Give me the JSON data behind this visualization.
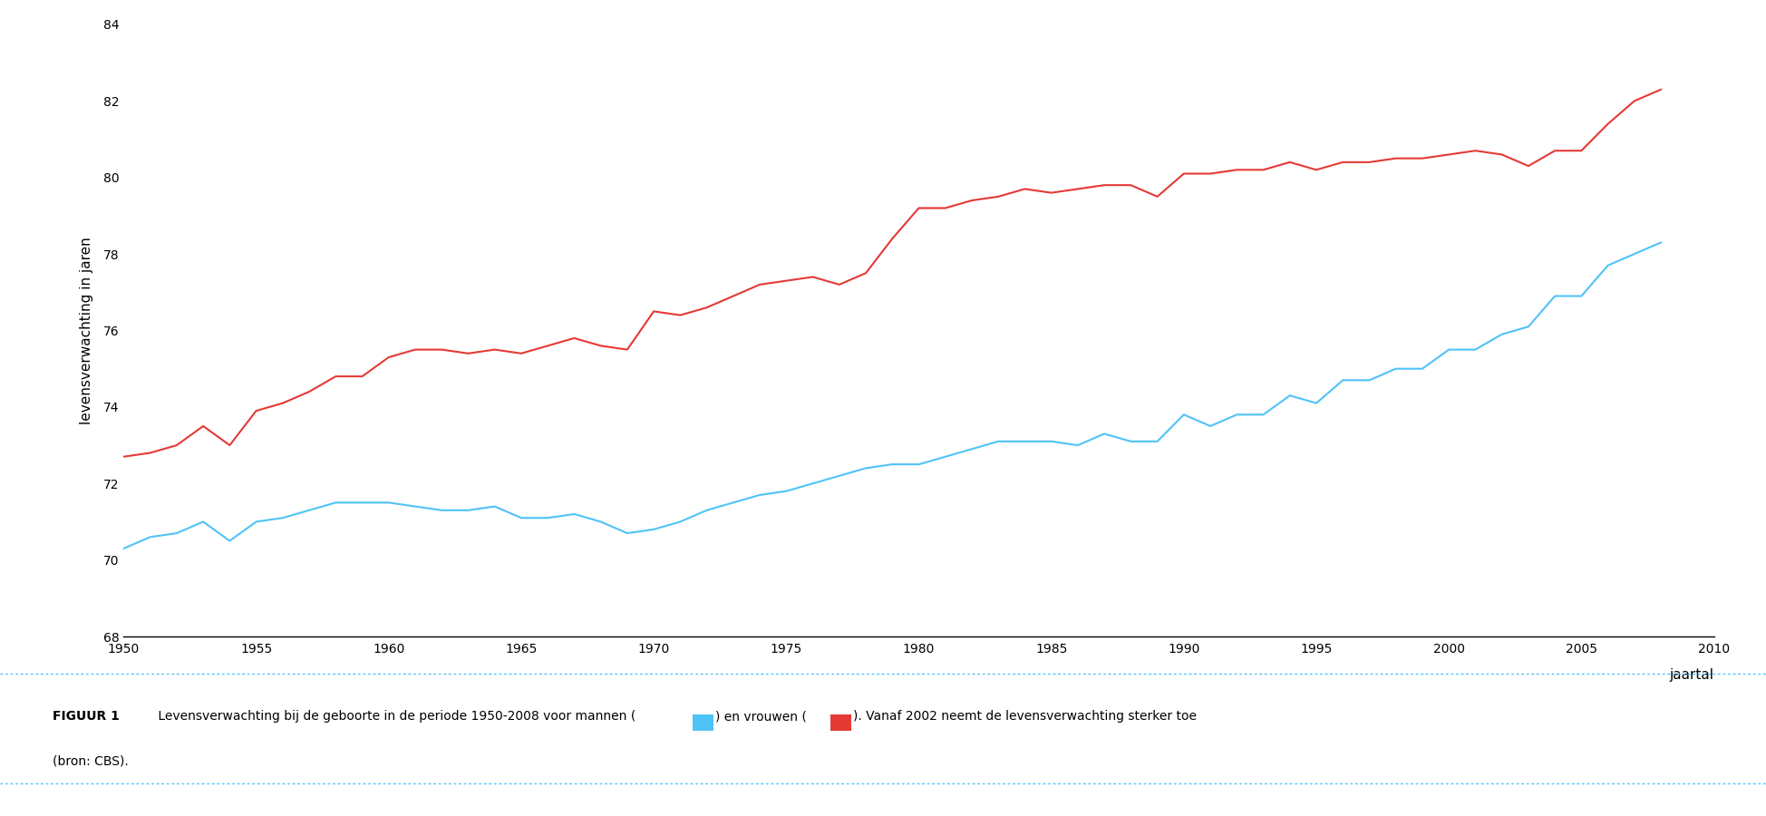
{
  "ylabel": "levensverwachting in jaren",
  "xlabel": "jaartal",
  "ylim": [
    68,
    84
  ],
  "xlim": [
    1950,
    2010
  ],
  "yticks": [
    68,
    70,
    72,
    74,
    76,
    78,
    80,
    82,
    84
  ],
  "xticks": [
    1950,
    1955,
    1960,
    1965,
    1970,
    1975,
    1980,
    1985,
    1990,
    1995,
    2000,
    2005,
    2010
  ],
  "men_color": "#4FC3F7",
  "women_color": "#E53935",
  "line_width": 1.5,
  "caption_bold": "FIGUUR 1",
  "caption_text": " Levensverwachting bij de geboorte in de periode 1950-2008 voor mannen (",
  "caption_text2": ") en vrouwen (",
  "caption_text3": "). Vanaf 2002 neemt de levensverwachting sterker toe",
  "caption_line2": "(bron: CBS).",
  "men_years": [
    1950,
    1951,
    1952,
    1953,
    1954,
    1955,
    1956,
    1957,
    1958,
    1959,
    1960,
    1961,
    1962,
    1963,
    1964,
    1965,
    1966,
    1967,
    1968,
    1969,
    1970,
    1971,
    1972,
    1973,
    1974,
    1975,
    1976,
    1977,
    1978,
    1979,
    1980,
    1981,
    1982,
    1983,
    1984,
    1985,
    1986,
    1987,
    1988,
    1989,
    1990,
    1991,
    1992,
    1993,
    1994,
    1995,
    1996,
    1997,
    1998,
    1999,
    2000,
    2001,
    2002,
    2003,
    2004,
    2005,
    2006,
    2007,
    2008
  ],
  "men_values": [
    70.3,
    70.6,
    70.7,
    71.0,
    70.5,
    71.0,
    71.1,
    71.3,
    71.5,
    71.5,
    71.5,
    71.4,
    71.3,
    71.3,
    71.4,
    71.1,
    71.1,
    71.2,
    71.0,
    70.7,
    70.8,
    71.0,
    71.3,
    71.5,
    71.7,
    71.8,
    72.0,
    72.2,
    72.4,
    72.5,
    72.5,
    72.7,
    72.9,
    73.1,
    73.1,
    73.1,
    73.0,
    73.3,
    73.1,
    73.1,
    73.8,
    73.5,
    73.8,
    73.8,
    74.3,
    74.1,
    74.7,
    74.7,
    75.0,
    75.0,
    75.5,
    75.5,
    75.9,
    76.1,
    76.9,
    76.9,
    77.7,
    78.0,
    78.3
  ],
  "women_years": [
    1950,
    1951,
    1952,
    1953,
    1954,
    1955,
    1956,
    1957,
    1958,
    1959,
    1960,
    1961,
    1962,
    1963,
    1964,
    1965,
    1966,
    1967,
    1968,
    1969,
    1970,
    1971,
    1972,
    1973,
    1974,
    1975,
    1976,
    1977,
    1978,
    1979,
    1980,
    1981,
    1982,
    1983,
    1984,
    1985,
    1986,
    1987,
    1988,
    1989,
    1990,
    1991,
    1992,
    1993,
    1994,
    1995,
    1996,
    1997,
    1998,
    1999,
    2000,
    2001,
    2002,
    2003,
    2004,
    2005,
    2006,
    2007,
    2008
  ],
  "women_values": [
    72.7,
    72.8,
    73.0,
    73.5,
    73.0,
    73.9,
    74.1,
    74.4,
    74.8,
    74.8,
    75.3,
    75.5,
    75.5,
    75.4,
    75.5,
    75.4,
    75.6,
    75.8,
    75.6,
    75.5,
    76.5,
    76.4,
    76.6,
    76.9,
    77.2,
    77.3,
    77.4,
    77.2,
    77.5,
    78.4,
    79.2,
    79.2,
    79.4,
    79.5,
    79.7,
    79.6,
    79.7,
    79.8,
    79.8,
    79.5,
    80.1,
    80.1,
    80.2,
    80.2,
    80.4,
    80.2,
    80.4,
    80.4,
    80.5,
    80.5,
    80.6,
    80.7,
    80.6,
    80.3,
    80.7,
    80.7,
    81.4,
    82.0,
    82.3
  ]
}
